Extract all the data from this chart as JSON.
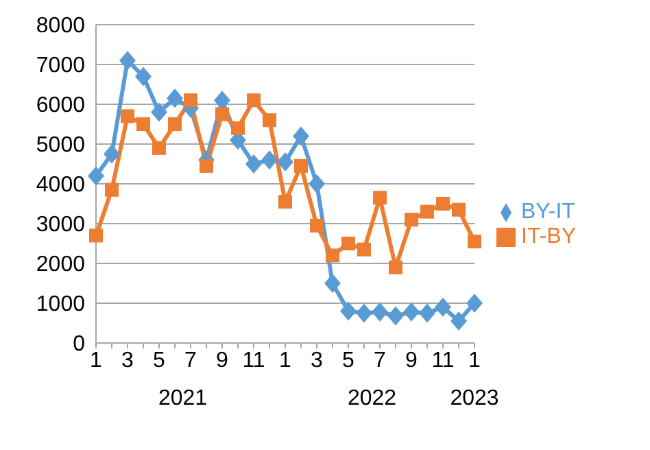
{
  "chart_data": {
    "type": "line",
    "categories": [
      "1",
      null,
      "3",
      null,
      "5",
      null,
      "7",
      null,
      "9",
      null,
      "11",
      null,
      "1",
      null,
      "3",
      null,
      "5",
      null,
      "7",
      null,
      "9",
      null,
      "11",
      null,
      "1"
    ],
    "series": [
      {
        "name": "BY-IT",
        "color": "#5b9bd5",
        "marker": "diamond",
        "values": [
          4200,
          4750,
          7100,
          6700,
          5800,
          6150,
          5900,
          4600,
          6100,
          5100,
          4500,
          4600,
          4550,
          5200,
          4000,
          1500,
          800,
          750,
          780,
          680,
          780,
          750,
          900,
          550,
          1000
        ]
      },
      {
        "name": "IT-BY",
        "color": "#ed7d31",
        "marker": "square",
        "values": [
          2700,
          3850,
          5700,
          5500,
          4900,
          5500,
          6100,
          4450,
          5750,
          5400,
          6100,
          5600,
          3550,
          4450,
          2950,
          2200,
          2500,
          2350,
          3650,
          1900,
          3100,
          3300,
          3500,
          3350,
          2550
        ]
      }
    ],
    "annotations": [
      "2021",
      "2022",
      "2023"
    ],
    "ylim": [
      0,
      8000
    ],
    "yticks": [
      0,
      1000,
      2000,
      3000,
      4000,
      5000,
      6000,
      7000,
      8000
    ],
    "grid": "y",
    "legend": "right"
  }
}
